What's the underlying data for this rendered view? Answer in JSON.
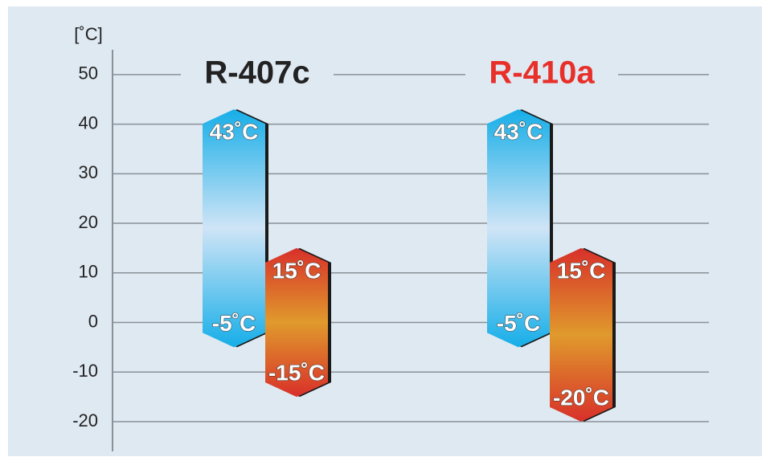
{
  "chart_data": {
    "type": "range-bar",
    "y_unit": "[˚C]",
    "categories": [
      "R-407c",
      "R-410a"
    ],
    "category_colors": [
      "#222222",
      "#e8302a"
    ],
    "series": [
      {
        "colors": [
          "#16aee8",
          "#cfe4f6"
        ],
        "values": [
          [
            -5,
            43
          ],
          [
            -5,
            43
          ]
        ],
        "value_labels": [
          [
            "-5˚C",
            "43˚C"
          ],
          [
            "-5˚C",
            "43˚C"
          ]
        ]
      },
      {
        "colors": [
          "#d8302a",
          "#e09a2c"
        ],
        "values": [
          [
            -15,
            15
          ],
          [
            -20,
            15
          ]
        ],
        "value_labels": [
          [
            "-15˚C",
            "15˚C"
          ],
          [
            "-20˚C",
            "15˚C"
          ]
        ]
      }
    ],
    "ylim": [
      -26,
      55
    ],
    "yticks": [
      -20,
      -10,
      0,
      10,
      20,
      30,
      40,
      50
    ],
    "grid": true
  }
}
